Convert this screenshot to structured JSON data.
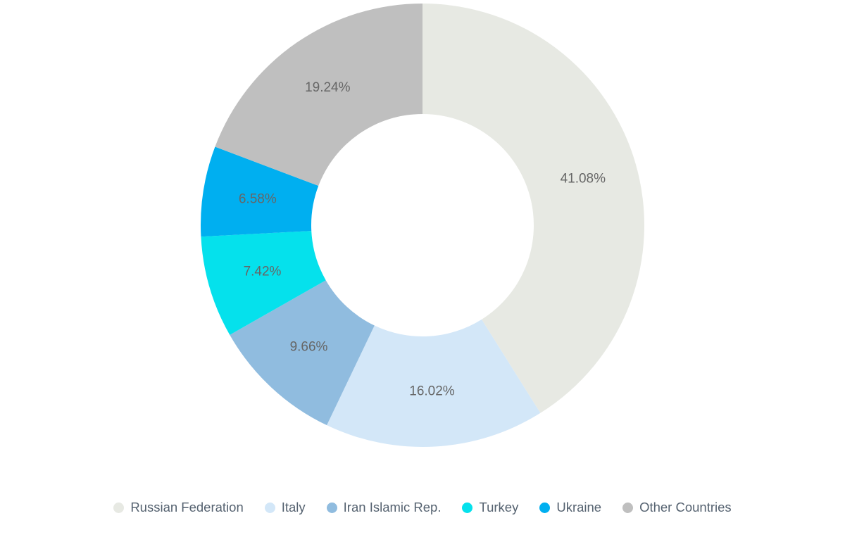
{
  "chart_data": {
    "type": "pie",
    "subtype": "donut",
    "title": "",
    "legend_position": "bottom",
    "start_angle_deg": 0,
    "direction": "clockwise",
    "label_placement": "inside",
    "label_color": "#666666",
    "legend_text_color": "#556270",
    "background_color": "#ffffff",
    "segments": [
      {
        "label": "Russian Federation",
        "value": 41.08,
        "display": "41.08%",
        "color": "#e7e9e3"
      },
      {
        "label": "Italy",
        "value": 16.02,
        "display": "16.02%",
        "color": "#d3e7f8"
      },
      {
        "label": "Iran Islamic Rep.",
        "value": 9.66,
        "display": "9.66%",
        "color": "#90bcdf"
      },
      {
        "label": "Turkey",
        "value": 7.42,
        "display": "7.42%",
        "color": "#05e1ec"
      },
      {
        "label": "Ukraine",
        "value": 6.58,
        "display": "6.58%",
        "color": "#00aff0"
      },
      {
        "label": "Other Countries",
        "value": 19.24,
        "display": "19.24%",
        "color": "#bfbfbf"
      }
    ]
  }
}
